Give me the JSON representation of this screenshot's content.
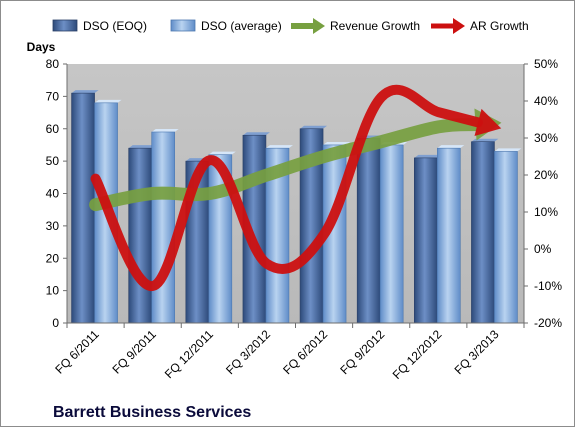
{
  "chart_data": {
    "type": "bar",
    "title": "",
    "company_label": "Barrett Business Services",
    "xlabel": "",
    "ylabel": "Days",
    "y2label": "",
    "categories": [
      "FQ 6/2011",
      "FQ 9/2011",
      "FQ 12/2011",
      "FQ 3/2012",
      "FQ 6/2012",
      "FQ 9/2012",
      "FQ 12/2012",
      "FQ 3/2013"
    ],
    "series": [
      {
        "name": "DSO (EOQ)",
        "type": "bar",
        "axis": "left",
        "color": "#4f6fa3",
        "values": [
          71,
          54,
          50,
          58,
          60,
          57,
          51,
          56
        ]
      },
      {
        "name": "DSO (average)",
        "type": "bar",
        "axis": "left",
        "color": "#8db3e2",
        "values": [
          68,
          59,
          52,
          54,
          55,
          55,
          54,
          53
        ]
      },
      {
        "name": "Revenue Growth",
        "type": "line",
        "axis": "right",
        "color": "#77a040",
        "values": [
          12,
          15,
          15,
          20,
          25,
          29,
          33,
          34
        ]
      },
      {
        "name": "AR Growth",
        "type": "line",
        "axis": "right",
        "color": "#cc1010",
        "values": [
          19,
          -10,
          24,
          -4,
          4,
          41,
          37,
          33
        ]
      }
    ],
    "ylim": [
      0,
      80
    ],
    "yticks": [
      0,
      10,
      20,
      30,
      40,
      50,
      60,
      70,
      80
    ],
    "y2lim": [
      -20,
      50
    ],
    "y2ticks": [
      "-20%",
      "-10%",
      "0%",
      "10%",
      "20%",
      "30%",
      "40%",
      "50%"
    ],
    "legend_position": "top",
    "grid": false,
    "plot_background": "#c0c0c0"
  }
}
